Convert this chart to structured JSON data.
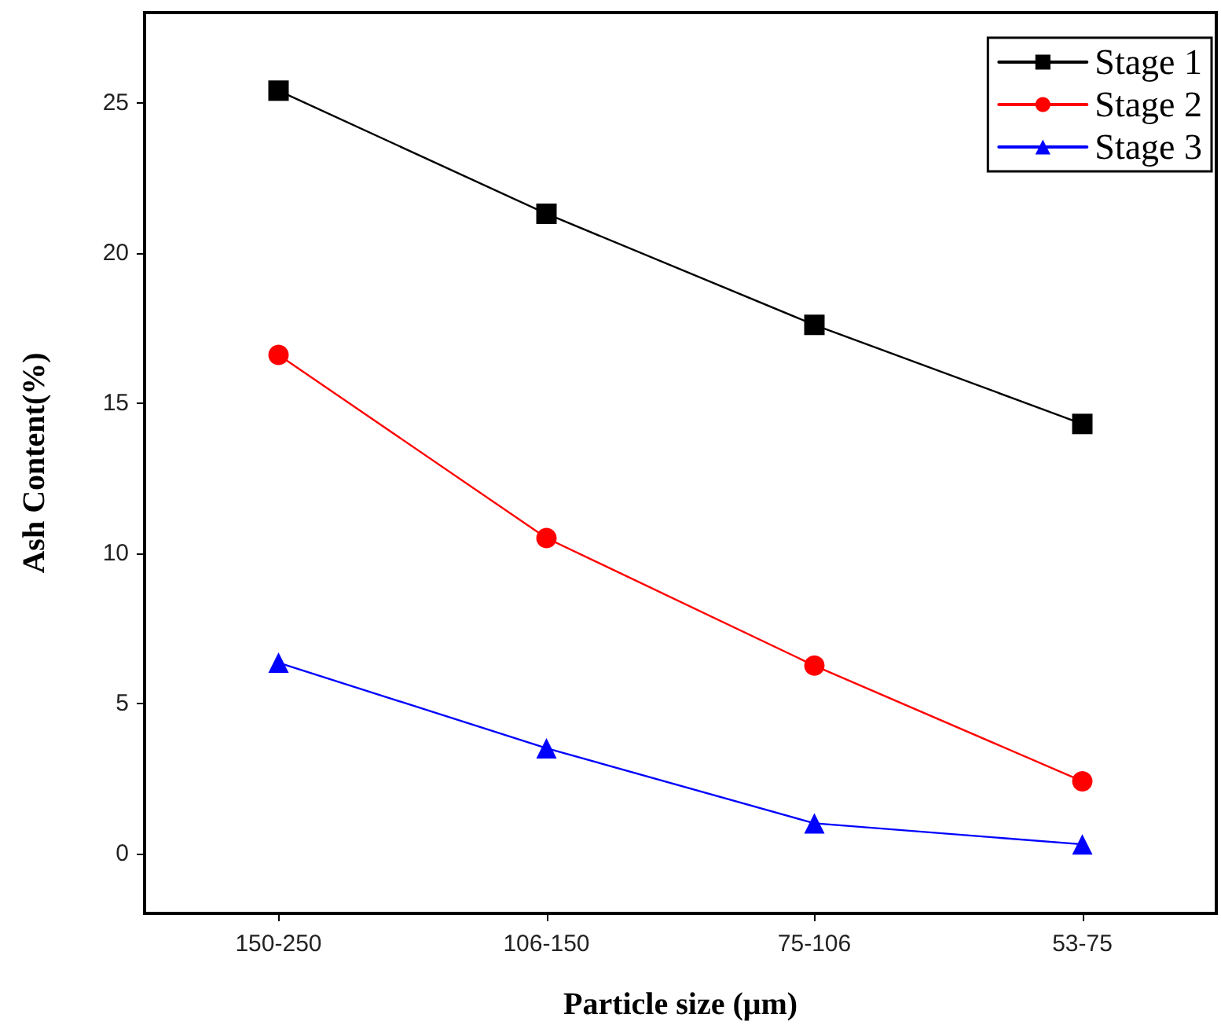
{
  "chart_data": {
    "type": "line",
    "xlabel": "Particle size (μm)",
    "ylabel": "Ash Content(%)",
    "categories": [
      "150-250",
      "106-150",
      "75-106",
      "53-75"
    ],
    "series": [
      {
        "name": "Stage 1",
        "color": "#000000",
        "marker": "square",
        "values": [
          25.4,
          21.3,
          17.6,
          14.3
        ]
      },
      {
        "name": "Stage 2",
        "color": "#ff0000",
        "marker": "circle",
        "values": [
          16.6,
          10.5,
          6.25,
          2.4
        ]
      },
      {
        "name": "Stage 3",
        "color": "#0000ff",
        "marker": "triangle",
        "values": [
          6.35,
          3.5,
          1.0,
          0.3
        ]
      }
    ],
    "ylim": [
      -2,
      28
    ],
    "yticks": [
      0,
      5,
      10,
      15,
      20,
      25
    ],
    "grid": false,
    "legend": "top right",
    "line_style": "solid"
  }
}
